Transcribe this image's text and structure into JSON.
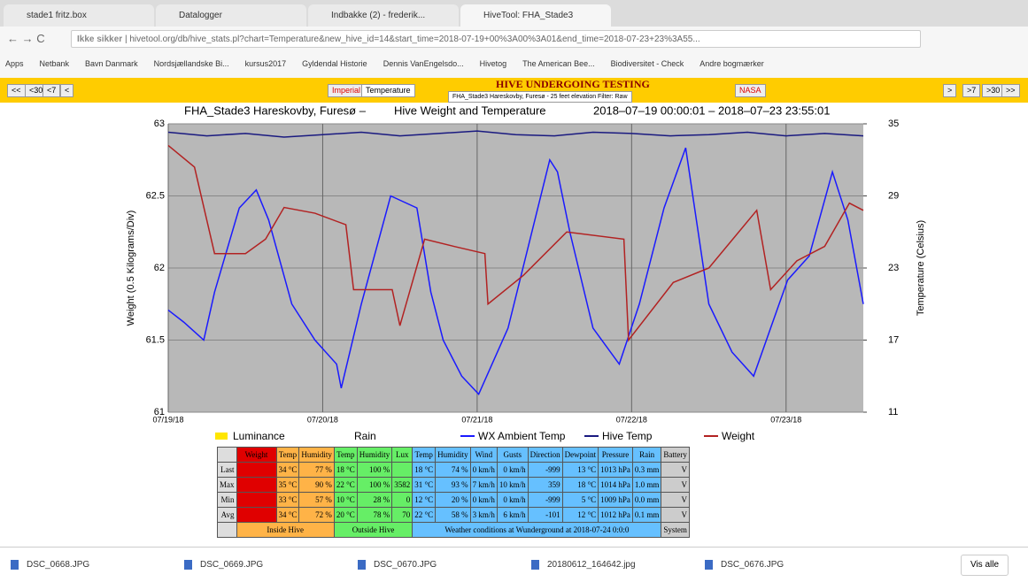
{
  "browser": {
    "tabs": [
      "stade1 fritz.box",
      "Datalogger",
      "Indbakke (2) - frederik...",
      "HiveTool: FHA_Stade3"
    ],
    "address": "hivetool.org/db/hive_stats.pl?chart=Temperature&new_hive_id=14&start_time=2018-07-19+00%3A00%3A01&end_time=2018-07-23+23%3A55...",
    "secure_label": "Ikke sikker",
    "bookmarks": [
      "Apps",
      "Netbank",
      "Bavn Danmark",
      "Nordsjællandske Bi...",
      "kursus2017",
      "Gyldendal Historie",
      "Dennis VanEngelsdo...",
      "Hivetog",
      "The American Bee...",
      "Biodiversitet - Check",
      "Andre bogmærker"
    ]
  },
  "toolbar": {
    "left_buttons": [
      "<<",
      "<30",
      "<7",
      "<"
    ],
    "units_button": "Imperial",
    "chart_select": "Temperature",
    "banner": "HIVE UNDERGOING TESTING",
    "hive_select": "FHA_Stade3 Hareskovby, Furesø - 25 feet elevation Filter: Raw",
    "nasa_button": "NASA",
    "right_buttons": [
      ">",
      ">7",
      ">30",
      ">>"
    ]
  },
  "chart_data": {
    "type": "line",
    "title_parts": [
      "FHA_Stade3 Hareskovby, Furesø –",
      "Hive Weight and Temperature",
      "2018–07–19 00:00:01 – 2018–07–23 23:55:01"
    ],
    "ylabel": "Weight (0.5 Kilograms/Div)",
    "y2label": "Temperature (Celsius)",
    "xlim": [
      0,
      4.5
    ],
    "xticks": [
      {
        "value": 0,
        "label": "07/19/18"
      },
      {
        "value": 1,
        "label": "07/20/18"
      },
      {
        "value": 2,
        "label": "07/21/18"
      },
      {
        "value": 3,
        "label": "07/22/18"
      },
      {
        "value": 4,
        "label": "07/23/18"
      }
    ],
    "ylim": [
      61,
      63
    ],
    "yticks": [
      61,
      61.5,
      62,
      62.5,
      63
    ],
    "y2lim": [
      11,
      35
    ],
    "y2ticks": [
      11,
      17,
      23,
      29,
      35
    ],
    "grid": true,
    "series": [
      {
        "name": "Luminance",
        "color": "#ffe600",
        "x": [],
        "values": []
      },
      {
        "name": "Rain",
        "color": "#ffffff",
        "x": [],
        "values": []
      },
      {
        "name": "WX Ambient Temp",
        "color": "#1a1aff",
        "axis": "y2",
        "x": [
          0,
          0.1,
          0.23,
          0.3,
          0.46,
          0.57,
          0.65,
          0.8,
          0.95,
          1.09,
          1.12,
          1.25,
          1.44,
          1.61,
          1.7,
          1.78,
          1.9,
          2.01,
          2.2,
          2.47,
          2.52,
          2.6,
          2.75,
          2.92,
          3.05,
          3.21,
          3.35,
          3.5,
          3.65,
          3.79,
          3.9,
          4.01,
          4.15,
          4.3,
          4.4,
          4.5
        ],
        "values": [
          19.5,
          18.5,
          17,
          21,
          28,
          29.5,
          27,
          20,
          17,
          15,
          13,
          20,
          29,
          28,
          21,
          17,
          14,
          12.5,
          18,
          32,
          31,
          26,
          18,
          15,
          20,
          28,
          33,
          20,
          16,
          14,
          18,
          22,
          24,
          31,
          27,
          20
        ]
      },
      {
        "name": "Hive Temp",
        "color": "#1a1a80",
        "axis": "y2",
        "x": [
          0,
          0.25,
          0.5,
          0.75,
          1,
          1.25,
          1.5,
          1.75,
          2,
          2.25,
          2.5,
          2.75,
          3,
          3.25,
          3.5,
          3.75,
          4,
          4.25,
          4.5
        ],
        "values": [
          34.3,
          34.0,
          34.2,
          33.9,
          34.1,
          34.3,
          34.0,
          34.2,
          34.4,
          34.1,
          34.0,
          34.3,
          34.2,
          34.0,
          34.1,
          34.3,
          34.0,
          34.2,
          34.0
        ]
      },
      {
        "name": "Weight",
        "color": "#b22222",
        "x": [
          0,
          0.17,
          0.3,
          0.5,
          0.63,
          0.75,
          0.95,
          1.15,
          1.2,
          1.45,
          1.5,
          1.66,
          1.85,
          2.05,
          2.07,
          2.3,
          2.58,
          2.95,
          2.98,
          3.27,
          3.5,
          3.81,
          3.9,
          4.07,
          4.25,
          4.41,
          4.5
        ],
        "values": [
          62.85,
          62.7,
          62.1,
          62.1,
          62.2,
          62.42,
          62.38,
          62.3,
          61.85,
          61.85,
          61.6,
          62.2,
          62.15,
          62.1,
          61.75,
          61.95,
          62.25,
          62.2,
          61.5,
          61.9,
          62.0,
          62.4,
          61.85,
          62.05,
          62.15,
          62.45,
          62.4
        ]
      }
    ]
  },
  "table": {
    "header": [
      "",
      "Weight",
      "Temp",
      "Humidity",
      "Temp",
      "Humidity",
      "Lux",
      "Temp",
      "Humidity",
      "Wind",
      "Gusts",
      "Direction",
      "Dewpoint",
      "Pressure",
      "Rain",
      "Battery"
    ],
    "rows": [
      [
        "Last",
        "",
        "34 °C",
        "77 %",
        "18 °C",
        "100 %",
        "",
        "18 °C",
        "74 %",
        "0 km/h",
        "0 km/h",
        "-999",
        "13 °C",
        "1013 hPa",
        "0.3 mm",
        "V"
      ],
      [
        "Max",
        "",
        "35 °C",
        "90 %",
        "22 °C",
        "100 %",
        "3582",
        "31 °C",
        "93 %",
        "7 km/h",
        "10 km/h",
        "359",
        "18 °C",
        "1014 hPa",
        "1.0 mm",
        "V"
      ],
      [
        "Min",
        "",
        "33 °C",
        "57 %",
        "10 °C",
        "28 %",
        "0",
        "12 °C",
        "20 %",
        "0 km/h",
        "0 km/h",
        "-999",
        "5 °C",
        "1009 hPa",
        "0.0 mm",
        "V"
      ],
      [
        "Avg",
        "",
        "34 °C",
        "72 %",
        "20 °C",
        "78 %",
        "70",
        "22 °C",
        "58 %",
        "3 km/h",
        "6 km/h",
        "-101",
        "12 °C",
        "1012 hPa",
        "0.1 mm",
        "V"
      ]
    ],
    "footer": [
      "Inside Hive",
      "Outside Hive",
      "Weather conditions at Wunderground at 2018-07-24 0:0:0",
      "System"
    ]
  },
  "downloads": {
    "files": [
      "DSC_0668.JPG",
      "DSC_0669.JPG",
      "DSC_0670.JPG",
      "20180612_164642.jpg",
      "DSC_0676.JPG"
    ],
    "show_all": "Vis alle"
  }
}
